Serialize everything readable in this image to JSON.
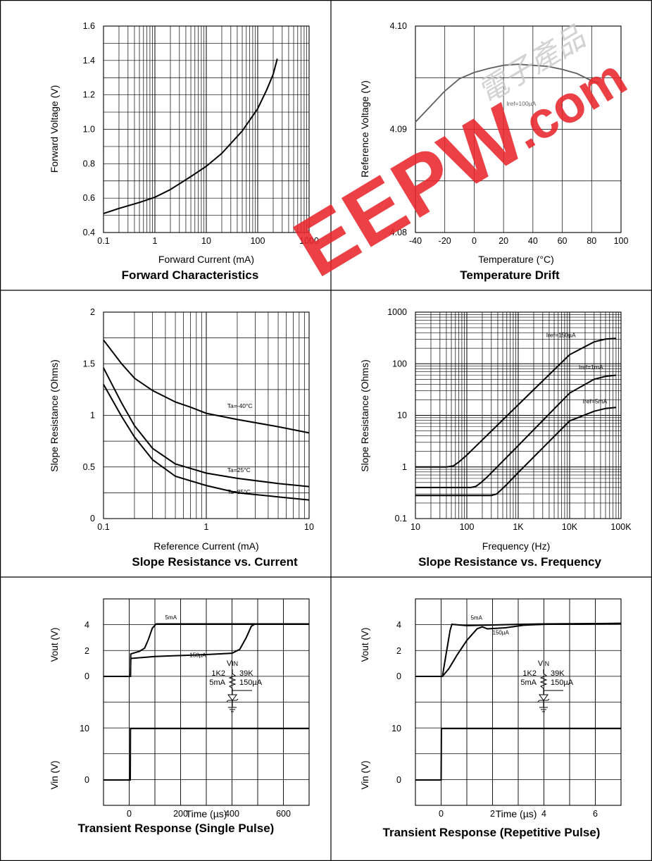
{
  "watermark": {
    "brand": "EEPW",
    "domain": ".com",
    "chinese": "電子產品",
    "brand_color": "#e8262b",
    "script_color": "#c9c9c9"
  },
  "chart_data": [
    {
      "id": "forward",
      "type": "line",
      "title": "Forward Characteristics",
      "xlabel": "Forward Current (mA)",
      "ylabel": "Forward Voltage (V)",
      "xscale": "log",
      "xlim": [
        0.1,
        1000
      ],
      "ylim": [
        0.4,
        1.6
      ],
      "xticks": [
        0.1,
        1,
        10,
        100,
        1000
      ],
      "xticklabels": [
        "0.1",
        "1",
        "10",
        "100",
        "1000"
      ],
      "yticks": [
        0.4,
        0.6,
        0.8,
        1.0,
        1.2,
        1.4,
        1.6
      ],
      "yticklabels": [
        "0.4",
        "0.6",
        "0.8",
        "1.0",
        "1.2",
        "1.4",
        "1.6"
      ],
      "grid": true,
      "series": [
        {
          "points": [
            [
              0.1,
              0.51
            ],
            [
              0.2,
              0.54
            ],
            [
              0.5,
              0.575
            ],
            [
              1,
              0.605
            ],
            [
              2,
              0.65
            ],
            [
              5,
              0.725
            ],
            [
              10,
              0.785
            ],
            [
              20,
              0.86
            ],
            [
              50,
              0.99
            ],
            [
              100,
              1.12
            ],
            [
              150,
              1.23
            ],
            [
              200,
              1.32
            ],
            [
              240,
              1.41
            ]
          ]
        }
      ]
    },
    {
      "id": "temp",
      "type": "line",
      "title": "Temperature Drift",
      "xlabel": "Temperature (°C)",
      "ylabel": "Reference Voltage (V)",
      "xscale": "linear",
      "xlim": [
        -40,
        100
      ],
      "ylim": [
        4.08,
        4.1
      ],
      "xticks": [
        -40,
        -20,
        0,
        20,
        40,
        60,
        80,
        100
      ],
      "xticklabels": [
        "-40",
        "-20",
        "0",
        "20",
        "40",
        "60",
        "80",
        "100"
      ],
      "yticks": [
        4.08,
        4.09,
        4.1
      ],
      "yticklabels": [
        "4.08",
        "4.09",
        "4.10"
      ],
      "grid": true,
      "series": [
        {
          "name": "Iref=100µA",
          "color": "#606060",
          "points": [
            [
              -40,
              4.0907
            ],
            [
              -30,
              4.0922
            ],
            [
              -20,
              4.0937
            ],
            [
              -10,
              4.0949
            ],
            [
              0,
              4.0955
            ],
            [
              10,
              4.0959
            ],
            [
              20,
              4.0962
            ],
            [
              30,
              4.0963
            ],
            [
              40,
              4.0962
            ],
            [
              50,
              4.0961
            ],
            [
              60,
              4.0958
            ],
            [
              70,
              4.0954
            ],
            [
              80,
              4.0947
            ],
            [
              85,
              4.0945
            ]
          ]
        }
      ],
      "labels": [
        {
          "text": "Iref=100µA",
          "x": 22,
          "y": 4.0923
        }
      ]
    },
    {
      "id": "slope_current",
      "type": "line",
      "title": "Slope Resistance vs. Current",
      "xlabel": "Reference Current (mA)",
      "ylabel": "Slope Resistance (Ohms)",
      "xscale": "log",
      "xlim": [
        0.1,
        10
      ],
      "ylim": [
        0,
        2
      ],
      "xticks": [
        0.1,
        1,
        10
      ],
      "xticklabels": [
        "0.1",
        "1",
        "10"
      ],
      "yticks": [
        0,
        0.5,
        1,
        1.5,
        2
      ],
      "yticklabels": [
        "0",
        "0.5",
        "1",
        "1.5",
        "2"
      ],
      "grid": true,
      "series": [
        {
          "name": "Ta=-40°C",
          "points": [
            [
              0.1,
              1.73
            ],
            [
              0.15,
              1.5
            ],
            [
              0.2,
              1.36
            ],
            [
              0.3,
              1.24
            ],
            [
              0.5,
              1.13
            ],
            [
              0.7,
              1.08
            ],
            [
              1,
              1.02
            ],
            [
              2,
              0.96
            ],
            [
              5,
              0.89
            ],
            [
              10,
              0.83
            ]
          ]
        },
        {
          "name": "Ta=25°C",
          "points": [
            [
              0.1,
              1.46
            ],
            [
              0.15,
              1.12
            ],
            [
              0.2,
              0.9
            ],
            [
              0.3,
              0.68
            ],
            [
              0.5,
              0.53
            ],
            [
              1,
              0.44
            ],
            [
              2,
              0.39
            ],
            [
              5,
              0.34
            ],
            [
              10,
              0.31
            ]
          ]
        },
        {
          "name": "Ta=85°C",
          "points": [
            [
              0.1,
              1.3
            ],
            [
              0.15,
              0.99
            ],
            [
              0.2,
              0.79
            ],
            [
              0.3,
              0.57
            ],
            [
              0.5,
              0.41
            ],
            [
              1,
              0.32
            ],
            [
              2,
              0.25
            ],
            [
              5,
              0.21
            ],
            [
              10,
              0.18
            ]
          ]
        }
      ],
      "labels": [
        {
          "text": "Ta=-40°C",
          "x": 1.6,
          "y": 1.07
        },
        {
          "text": "Ta=25°C",
          "x": 1.6,
          "y": 0.45
        },
        {
          "text": "Ta=85°C",
          "x": 1.6,
          "y": 0.24
        }
      ]
    },
    {
      "id": "slope_freq",
      "type": "line",
      "title": "Slope Resistance vs. Frequency",
      "xlabel": "Frequency (Hz)",
      "ylabel": "Slope Resistance (Ohms)",
      "xscale": "log",
      "yscale": "log",
      "xlim": [
        10,
        100000
      ],
      "ylim": [
        0.1,
        1000
      ],
      "xticks": [
        10,
        100,
        1000,
        10000,
        100000
      ],
      "xticklabels": [
        "10",
        "100",
        "1K",
        "10K",
        "100K"
      ],
      "yticks": [
        0.1,
        1,
        10,
        100,
        1000
      ],
      "yticklabels": [
        "0.1",
        "1",
        "10",
        "100",
        "1000"
      ],
      "grid": true,
      "series": [
        {
          "name": "Iref=150µA",
          "points": [
            [
              10,
              1
            ],
            [
              40,
              1
            ],
            [
              55,
              1.05
            ],
            [
              70,
              1.25
            ],
            [
              100,
              1.7
            ],
            [
              1000,
              16
            ],
            [
              10000,
              150
            ],
            [
              30000,
              265
            ],
            [
              50000,
              300
            ],
            [
              80000,
              310
            ]
          ]
        },
        {
          "name": "Iref=1mA",
          "points": [
            [
              10,
              0.4
            ],
            [
              120,
              0.4
            ],
            [
              150,
              0.42
            ],
            [
              190,
              0.5
            ],
            [
              250,
              0.64
            ],
            [
              1000,
              2.6
            ],
            [
              10000,
              27
            ],
            [
              30000,
              50
            ],
            [
              50000,
              57
            ],
            [
              80000,
              60
            ]
          ]
        },
        {
          "name": "Iref=5mA",
          "points": [
            [
              10,
              0.28
            ],
            [
              300,
              0.28
            ],
            [
              380,
              0.3
            ],
            [
              480,
              0.37
            ],
            [
              600,
              0.46
            ],
            [
              1000,
              0.78
            ],
            [
              10000,
              7.8
            ],
            [
              30000,
              12
            ],
            [
              50000,
              13.6
            ],
            [
              80000,
              14.2
            ]
          ]
        }
      ],
      "labels": [
        {
          "text": "Iref=150µA",
          "x": 3500,
          "y": 330
        },
        {
          "text": "Iref=1mA",
          "x": 15000,
          "y": 78
        },
        {
          "text": "Iref=5mA",
          "x": 18000,
          "y": 17
        }
      ]
    },
    {
      "id": "transient_single",
      "type": "line",
      "title": "Transient Response (Single Pulse)",
      "xlabel": "Time (µs)",
      "ylabel": "Vout (V)",
      "ylabel2": "Vin (V)",
      "xscale": "linear",
      "xlim": [
        -100,
        700
      ],
      "ylim": [
        -3,
        11.5
      ],
      "xticks": [
        0,
        200,
        400,
        600
      ],
      "xticklabels": [
        "0",
        "200",
        "400",
        "600"
      ],
      "yticks": [
        0,
        2,
        4
      ],
      "yticklabels": [
        "0",
        "2",
        "4"
      ],
      "vin_ticks": [
        0,
        10
      ],
      "vin_ticklabels": [
        "0",
        "10"
      ],
      "vin_offset": -13,
      "vin_scale": 0.8,
      "grid": true,
      "series": [
        {
          "name": "5mA",
          "points": [
            [
              -100,
              0
            ],
            [
              5,
              0
            ],
            [
              6,
              1.75
            ],
            [
              40,
              1.95
            ],
            [
              60,
              2.2
            ],
            [
              75,
              2.9
            ],
            [
              90,
              3.75
            ],
            [
              105,
              4.08
            ],
            [
              700,
              4.08
            ]
          ]
        },
        {
          "name": "150µA",
          "points": [
            [
              -100,
              0
            ],
            [
              5,
              0
            ],
            [
              6,
              1.4
            ],
            [
              100,
              1.55
            ],
            [
              300,
              1.7
            ],
            [
              400,
              1.8
            ],
            [
              430,
              2.1
            ],
            [
              455,
              3.0
            ],
            [
              475,
              3.9
            ],
            [
              490,
              4.08
            ],
            [
              700,
              4.08
            ]
          ]
        },
        {
          "name": "Vin",
          "role": "vin",
          "points": [
            [
              -100,
              0
            ],
            [
              4,
              0
            ],
            [
              5,
              10
            ],
            [
              700,
              10
            ]
          ]
        }
      ],
      "labels": [
        {
          "text": "5mA",
          "x": 140,
          "y": 4.45
        },
        {
          "text": "150µA",
          "x": 235,
          "y": 1.5
        }
      ],
      "circuit": {
        "vin": "VIN",
        "r1": "1K2",
        "i1": "5mA",
        "r2": "39K",
        "i2": "150µA"
      }
    },
    {
      "id": "transient_repetitive",
      "type": "line",
      "title": "Transient Response (Repetitive Pulse)",
      "xlabel": "Time (µs)",
      "ylabel": "Vout (V)",
      "ylabel2": "Vin (V)",
      "xscale": "linear",
      "xlim": [
        -1,
        7
      ],
      "ylim": [
        -3,
        11.5
      ],
      "xticks": [
        0,
        2,
        4,
        6
      ],
      "xticklabels": [
        "0",
        "2",
        "4",
        "6"
      ],
      "yticks": [
        0,
        2,
        4
      ],
      "yticklabels": [
        "0",
        "2",
        "4"
      ],
      "vin_ticks": [
        0,
        10
      ],
      "vin_ticklabels": [
        "0",
        "10"
      ],
      "vin_offset": -13,
      "vin_scale": 0.8,
      "grid": true,
      "series": [
        {
          "name": "5mA",
          "points": [
            [
              -1,
              0
            ],
            [
              0.05,
              0
            ],
            [
              0.2,
              1.8
            ],
            [
              0.35,
              3.6
            ],
            [
              0.42,
              4.05
            ],
            [
              1,
              3.95
            ],
            [
              2,
              4.0
            ],
            [
              3,
              4.05
            ],
            [
              4,
              4.08
            ],
            [
              7,
              4.12
            ]
          ]
        },
        {
          "name": "150µA",
          "points": [
            [
              -1,
              0
            ],
            [
              0.05,
              0
            ],
            [
              0.3,
              0.6
            ],
            [
              0.6,
              1.6
            ],
            [
              1,
              2.8
            ],
            [
              1.4,
              3.7
            ],
            [
              1.6,
              3.85
            ],
            [
              1.8,
              3.7
            ],
            [
              2.5,
              3.78
            ],
            [
              3.2,
              3.98
            ],
            [
              4,
              4.05
            ],
            [
              7,
              4.12
            ]
          ]
        },
        {
          "name": "Vin",
          "role": "vin",
          "points": [
            [
              -1,
              0
            ],
            [
              0,
              0
            ],
            [
              0.01,
              10
            ],
            [
              7,
              10
            ]
          ]
        }
      ],
      "labels": [
        {
          "text": "5mA",
          "x": 1.15,
          "y": 4.4
        },
        {
          "text": "150µA",
          "x": 2.0,
          "y": 3.25
        }
      ],
      "circuit": {
        "vin": "VIN",
        "r1": "1K2",
        "i1": "5mA",
        "r2": "39K",
        "i2": "150µA"
      }
    }
  ]
}
